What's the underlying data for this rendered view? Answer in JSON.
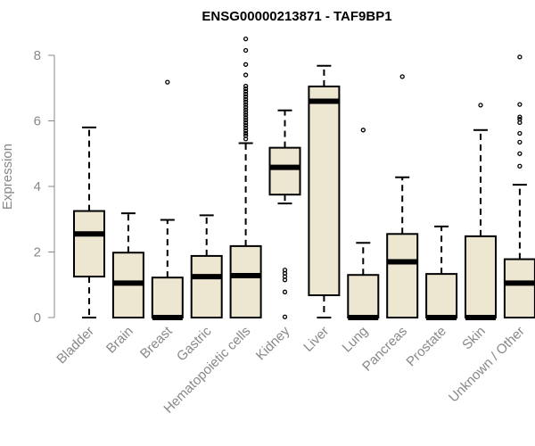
{
  "chart_data": {
    "type": "boxplot",
    "title": "ENSG00000213871 - TAF9BP1",
    "xlabel": "",
    "ylabel": "Expression",
    "ylim": [
      0,
      8.6
    ],
    "yticks": [
      0,
      2,
      4,
      6,
      8
    ],
    "box_fill": "#ede6d0",
    "box_stroke": "#000000",
    "categories": [
      "Bladder",
      "Brain",
      "Breast",
      "Gastric",
      "Hematopoietic cells",
      "Kidney",
      "Liver",
      "Lung",
      "Pancreas",
      "Prostate",
      "Skin",
      "Unknown / Other"
    ],
    "boxes": [
      {
        "name": "Bladder",
        "min": 0,
        "q1": 1.25,
        "median": 2.55,
        "q3": 3.25,
        "max": 5.8,
        "outliers": []
      },
      {
        "name": "Brain",
        "min": 0,
        "q1": 0,
        "median": 1.05,
        "q3": 1.98,
        "max": 3.18,
        "outliers": []
      },
      {
        "name": "Breast",
        "min": 0,
        "q1": 0,
        "median": 0,
        "q3": 1.22,
        "max": 2.98,
        "outliers": [
          7.18
        ]
      },
      {
        "name": "Gastric",
        "min": 0,
        "q1": 0,
        "median": 1.25,
        "q3": 1.88,
        "max": 3.12,
        "outliers": []
      },
      {
        "name": "Hematopoietic cells",
        "min": 0,
        "q1": 0,
        "median": 1.28,
        "q3": 2.18,
        "max": 5.32,
        "outliers": [
          5.45,
          5.55,
          5.62,
          5.7,
          5.78,
          5.86,
          5.94,
          6.02,
          6.1,
          6.18,
          6.26,
          6.34,
          6.42,
          6.5,
          6.58,
          6.66,
          6.74,
          6.82,
          6.9,
          6.98,
          7.06,
          7.4,
          7.72,
          8.15,
          8.5
        ]
      },
      {
        "name": "Kidney",
        "min": 3.48,
        "q1": 3.75,
        "median": 4.58,
        "q3": 5.18,
        "max": 6.32,
        "outliers": [
          1.45,
          1.35,
          1.25,
          1.15,
          0.78,
          0.02
        ]
      },
      {
        "name": "Liver",
        "min": 0,
        "q1": 0.68,
        "median": 6.6,
        "q3": 7.05,
        "max": 7.68,
        "outliers": []
      },
      {
        "name": "Lung",
        "min": 0,
        "q1": 0,
        "median": 0,
        "q3": 1.3,
        "max": 2.28,
        "outliers": [
          5.72
        ]
      },
      {
        "name": "Pancreas",
        "min": 0,
        "q1": 0,
        "median": 1.7,
        "q3": 2.55,
        "max": 4.28,
        "outliers": [
          7.35
        ]
      },
      {
        "name": "Prostate",
        "min": 0,
        "q1": 0,
        "median": 0,
        "q3": 1.33,
        "max": 2.78,
        "outliers": []
      },
      {
        "name": "Skin",
        "min": 0,
        "q1": 0,
        "median": 0,
        "q3": 2.48,
        "max": 5.72,
        "outliers": [
          6.48
        ]
      },
      {
        "name": "Unknown / Other",
        "min": 0,
        "q1": 0,
        "median": 1.05,
        "q3": 1.78,
        "max": 4.05,
        "outliers": [
          4.62,
          5.0,
          5.35,
          5.62,
          5.95,
          6.05,
          6.12,
          6.5,
          7.95
        ]
      }
    ]
  }
}
